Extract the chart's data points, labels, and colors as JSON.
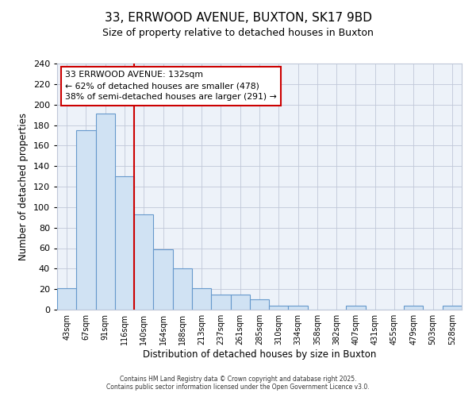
{
  "title": "33, ERRWOOD AVENUE, BUXTON, SK17 9BD",
  "subtitle": "Size of property relative to detached houses in Buxton",
  "xlabel": "Distribution of detached houses by size in Buxton",
  "ylabel": "Number of detached properties",
  "categories": [
    "43sqm",
    "67sqm",
    "91sqm",
    "116sqm",
    "140sqm",
    "164sqm",
    "188sqm",
    "213sqm",
    "237sqm",
    "261sqm",
    "285sqm",
    "310sqm",
    "334sqm",
    "358sqm",
    "382sqm",
    "407sqm",
    "431sqm",
    "455sqm",
    "479sqm",
    "503sqm",
    "528sqm"
  ],
  "values": [
    21,
    175,
    191,
    130,
    93,
    59,
    40,
    21,
    15,
    15,
    10,
    4,
    4,
    0,
    0,
    4,
    0,
    0,
    4,
    0,
    4
  ],
  "bar_color_face": "#d0e2f3",
  "bar_color_edge": "#6699cc",
  "vline_color": "#cc0000",
  "annotation_line1": "33 ERRWOOD AVENUE: 132sqm",
  "annotation_line2": "← 62% of detached houses are smaller (478)",
  "annotation_line3": "38% of semi-detached houses are larger (291) →",
  "annotation_box_edgecolor": "#cc0000",
  "ylim": [
    0,
    240
  ],
  "yticks": [
    0,
    20,
    40,
    60,
    80,
    100,
    120,
    140,
    160,
    180,
    200,
    220,
    240
  ],
  "footer1": "Contains HM Land Registry data © Crown copyright and database right 2025.",
  "footer2": "Contains public sector information licensed under the Open Government Licence v3.0.",
  "bg_color": "#ffffff",
  "plot_bg_color": "#edf2f9",
  "title_fontsize": 11,
  "subtitle_fontsize": 9
}
